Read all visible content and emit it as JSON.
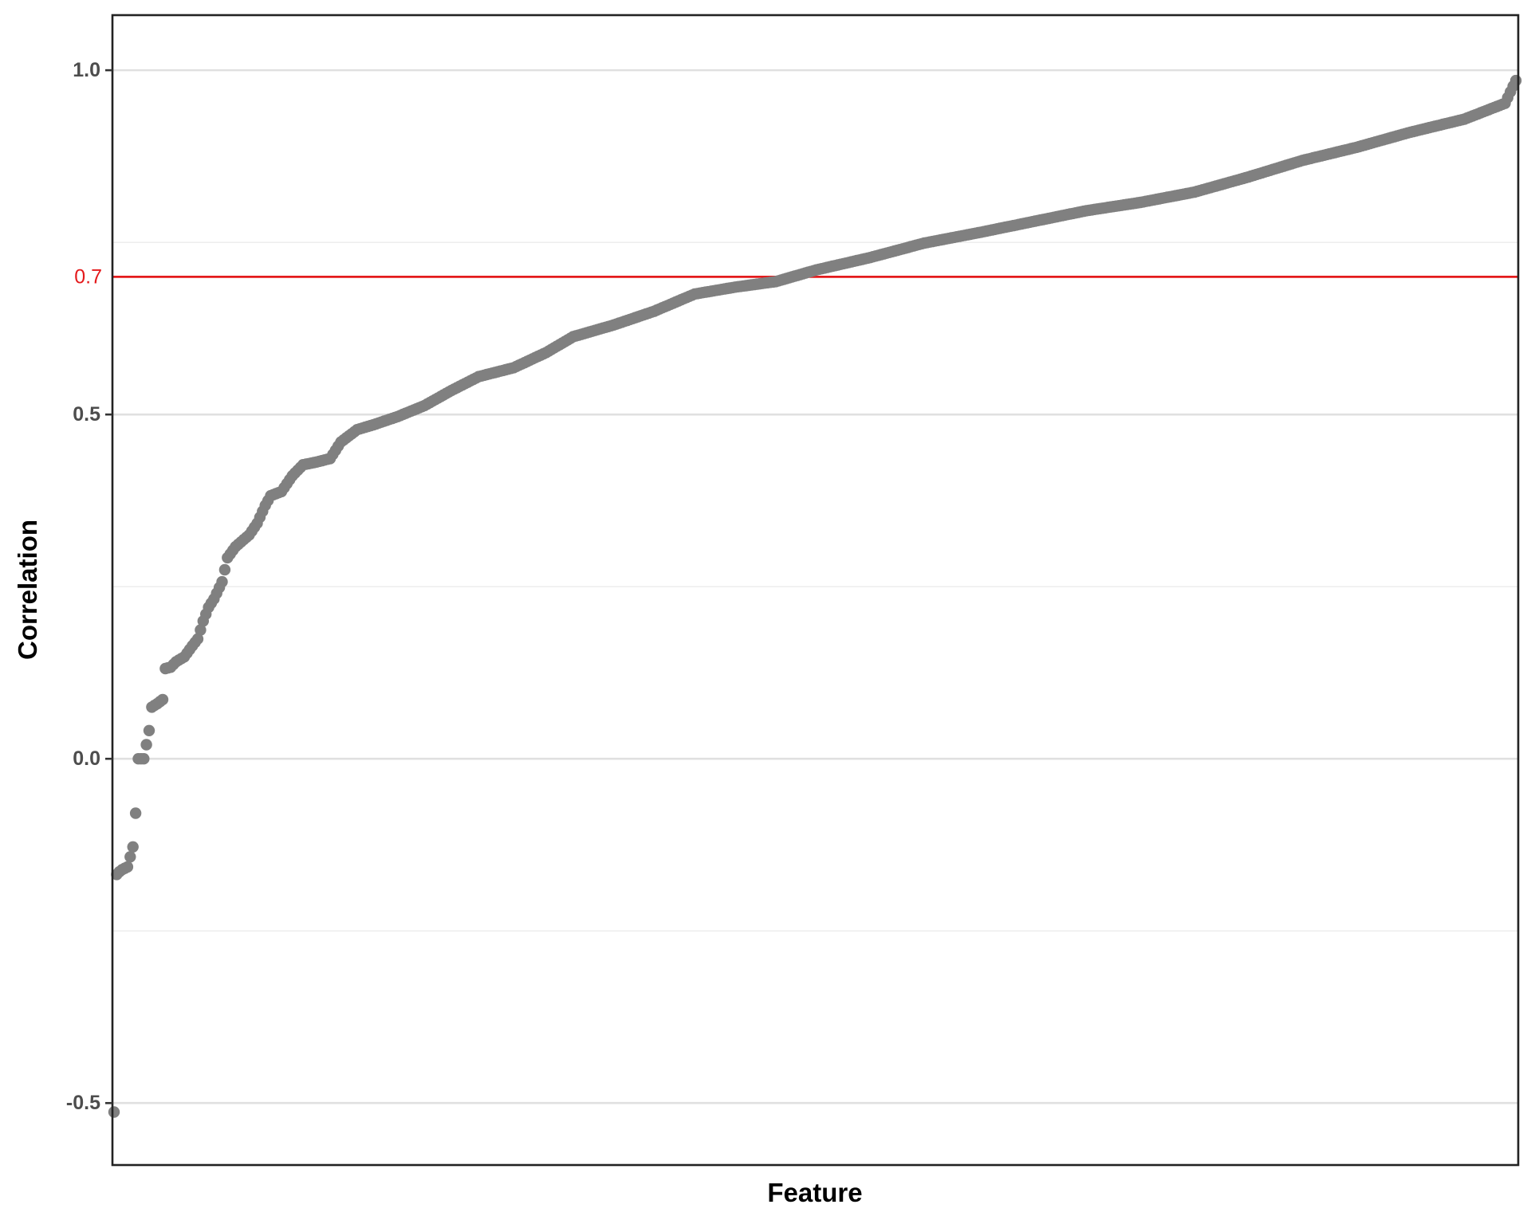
{
  "chart_data": {
    "type": "scatter",
    "title": "",
    "xlabel": "Feature",
    "ylabel": "Correlation",
    "ylim": [
      -0.59,
      1.08
    ],
    "y_ticks": [
      {
        "value": 1.0,
        "label": "1.0"
      },
      {
        "value": 0.5,
        "label": "0.5"
      },
      {
        "value": 0.0,
        "label": "0.0"
      },
      {
        "value": -0.5,
        "label": "-0.5"
      }
    ],
    "y_minor_grid": [
      0.75,
      0.25,
      -0.25
    ],
    "x_ticks": "none",
    "grid": true,
    "reference_line": {
      "value": 0.7,
      "label": "0.7",
      "color": "#e41a1c"
    },
    "point_color": "#808080",
    "n_points": 520,
    "sorted_values_anchors": [
      [
        0,
        -0.513
      ],
      [
        1,
        -0.168
      ],
      [
        2,
        -0.164
      ],
      [
        3,
        -0.161
      ],
      [
        5,
        -0.157
      ],
      [
        7,
        -0.128
      ],
      [
        8,
        -0.079
      ],
      [
        9,
        0.0
      ],
      [
        11,
        0.0
      ],
      [
        13,
        0.041
      ],
      [
        14,
        0.075
      ],
      [
        16,
        0.08
      ],
      [
        18,
        0.086
      ],
      [
        19,
        0.131
      ],
      [
        21,
        0.133
      ],
      [
        23,
        0.141
      ],
      [
        26,
        0.148
      ],
      [
        29,
        0.164
      ],
      [
        31,
        0.174
      ],
      [
        33,
        0.2
      ],
      [
        35,
        0.22
      ],
      [
        37,
        0.232
      ],
      [
        40,
        0.257
      ],
      [
        42,
        0.292
      ],
      [
        45,
        0.308
      ],
      [
        50,
        0.325
      ],
      [
        53,
        0.342
      ],
      [
        56,
        0.368
      ],
      [
        58,
        0.382
      ],
      [
        62,
        0.388
      ],
      [
        66,
        0.411
      ],
      [
        70,
        0.427
      ],
      [
        75,
        0.431
      ],
      [
        80,
        0.436
      ],
      [
        84,
        0.46
      ],
      [
        90,
        0.478
      ],
      [
        96,
        0.485
      ],
      [
        105,
        0.497
      ],
      [
        115,
        0.513
      ],
      [
        125,
        0.535
      ],
      [
        135,
        0.555
      ],
      [
        148,
        0.568
      ],
      [
        160,
        0.59
      ],
      [
        170,
        0.613
      ],
      [
        185,
        0.63
      ],
      [
        200,
        0.65
      ],
      [
        215,
        0.675
      ],
      [
        230,
        0.685
      ],
      [
        245,
        0.693
      ],
      [
        260,
        0.71
      ],
      [
        280,
        0.728
      ],
      [
        300,
        0.749
      ],
      [
        320,
        0.764
      ],
      [
        340,
        0.78
      ],
      [
        360,
        0.796
      ],
      [
        380,
        0.808
      ],
      [
        400,
        0.823
      ],
      [
        420,
        0.845
      ],
      [
        440,
        0.869
      ],
      [
        460,
        0.888
      ],
      [
        480,
        0.91
      ],
      [
        500,
        0.929
      ],
      [
        515,
        0.952
      ],
      [
        519,
        0.985
      ]
    ]
  }
}
